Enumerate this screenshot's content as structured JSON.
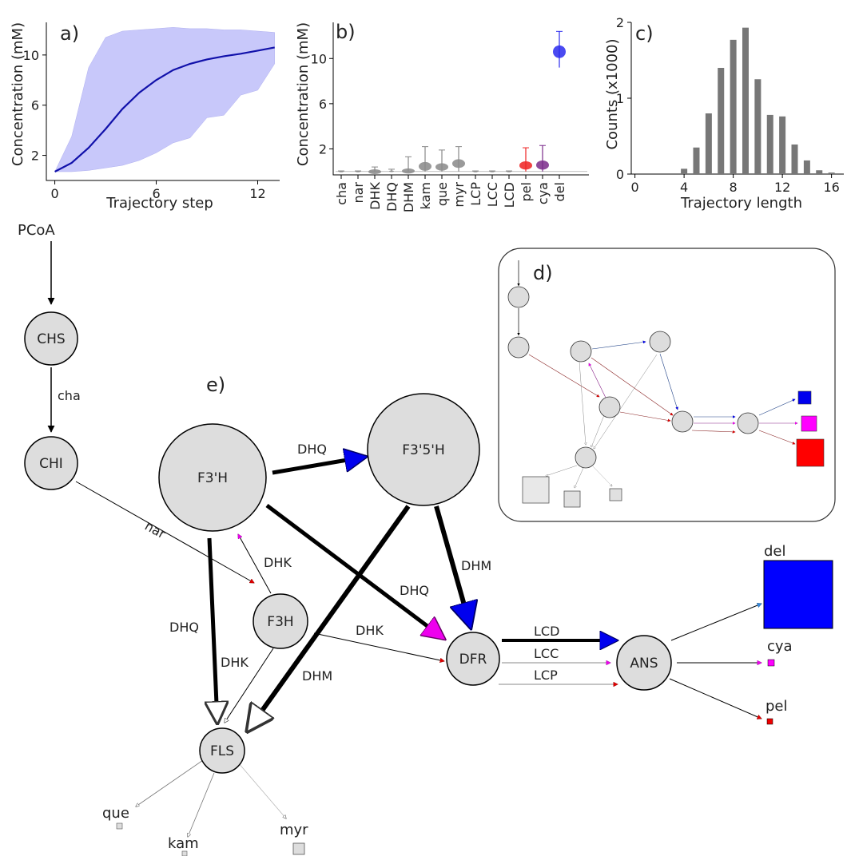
{
  "chart_data": [
    {
      "panel": "a)",
      "type": "area",
      "xlabel": "Trajectory step",
      "ylabel": "Concentration (mM)",
      "xlim": [
        -0.5,
        13.3
      ],
      "ylim": [
        0,
        12.6
      ],
      "xticks": [
        0,
        6,
        12
      ],
      "yticks": [
        2,
        6,
        10
      ],
      "x": [
        0,
        1,
        2,
        3,
        4,
        5,
        6,
        7,
        8,
        9,
        10,
        11,
        12,
        13
      ],
      "mean": [
        0.7,
        1.4,
        2.6,
        4.1,
        5.7,
        7.0,
        8.0,
        8.8,
        9.3,
        9.65,
        9.9,
        10.1,
        10.35,
        10.6
      ],
      "upper": [
        0.7,
        3.5,
        9.0,
        11.4,
        11.9,
        12.0,
        12.1,
        12.2,
        12.1,
        12.1,
        12.0,
        12.0,
        11.9,
        11.8
      ],
      "lower": [
        0.7,
        0.7,
        0.8,
        1.0,
        1.2,
        1.6,
        2.2,
        3.0,
        3.4,
        5.0,
        5.2,
        6.8,
        7.2,
        9.3
      ],
      "colors": {
        "mean": "#1111aa",
        "band": "#c8c8fa"
      }
    },
    {
      "panel": "b)",
      "type": "violin",
      "ylabel": "Concentration (mM)",
      "ylim": [
        -0.3,
        13.2
      ],
      "yticks": [
        2,
        6,
        10
      ],
      "categories": [
        "cha",
        "nar",
        "DHK",
        "DHQ",
        "DHM",
        "kam",
        "que",
        "myr",
        "LCP",
        "LCC",
        "LCD",
        "pel",
        "cya",
        "del"
      ],
      "values": [
        0.0,
        0.0,
        0.05,
        0.02,
        0.1,
        0.35,
        0.35,
        0.6,
        0.0,
        0.0,
        0.0,
        0.45,
        0.45,
        10.6
      ],
      "max": [
        0.05,
        0.05,
        0.4,
        0.2,
        1.3,
        2.2,
        1.9,
        2.2,
        0.05,
        0.05,
        0.05,
        2.1,
        2.3,
        12.4
      ],
      "min": [
        0.0,
        0.0,
        0.0,
        0.0,
        0.0,
        0.0,
        0.0,
        0.0,
        0.0,
        0.0,
        0.0,
        0.0,
        0.0,
        9.2
      ],
      "colors": [
        "#888888",
        "#888888",
        "#888888",
        "#888888",
        "#888888",
        "#888888",
        "#888888",
        "#888888",
        "#888888",
        "#888888",
        "#888888",
        "#ee2222",
        "#7a2a8a",
        "#2a2aee"
      ]
    },
    {
      "panel": "c)",
      "type": "bar",
      "xlabel": "Trajectory length",
      "ylabel": "Counts (x1000)",
      "xlim": [
        -0.3,
        17
      ],
      "ylim": [
        0,
        2.0
      ],
      "xticks": [
        0,
        4,
        8,
        12,
        16
      ],
      "yticks": [
        0,
        1,
        2
      ],
      "x": [
        4,
        5,
        6,
        7,
        8,
        9,
        10,
        11,
        12,
        13,
        14,
        15,
        16
      ],
      "values": [
        0.07,
        0.35,
        0.8,
        1.4,
        1.77,
        1.93,
        1.25,
        0.78,
        0.76,
        0.39,
        0.18,
        0.05,
        0.02
      ],
      "color": "#777777"
    }
  ],
  "diagram": {
    "panel_e": "e)",
    "panel_d": "d)",
    "source": "PCoA",
    "nodes": [
      "CHS",
      "CHI",
      "F3'H",
      "F3'5'H",
      "F3H",
      "DFR",
      "ANS",
      "FLS"
    ],
    "edge_labels": {
      "cha": "cha",
      "nar": "nar",
      "dhq1": "DHQ",
      "dhq2": "DHQ",
      "dhq3": "DHQ",
      "dhk1": "DHK",
      "dhk2": "DHK",
      "dhk3": "DHK",
      "dhm1": "DHM",
      "dhm2": "DHM",
      "lcd": "LCD",
      "lcc": "LCC",
      "lcp": "LCP"
    },
    "products": [
      "del",
      "cya",
      "pel",
      "que",
      "kam",
      "myr"
    ],
    "colors": {
      "blue": "#0000ff",
      "magenta": "#ff00ff",
      "red": "#ff0000",
      "node": "#dddddd",
      "arrowBlue": "#3388dd"
    }
  }
}
